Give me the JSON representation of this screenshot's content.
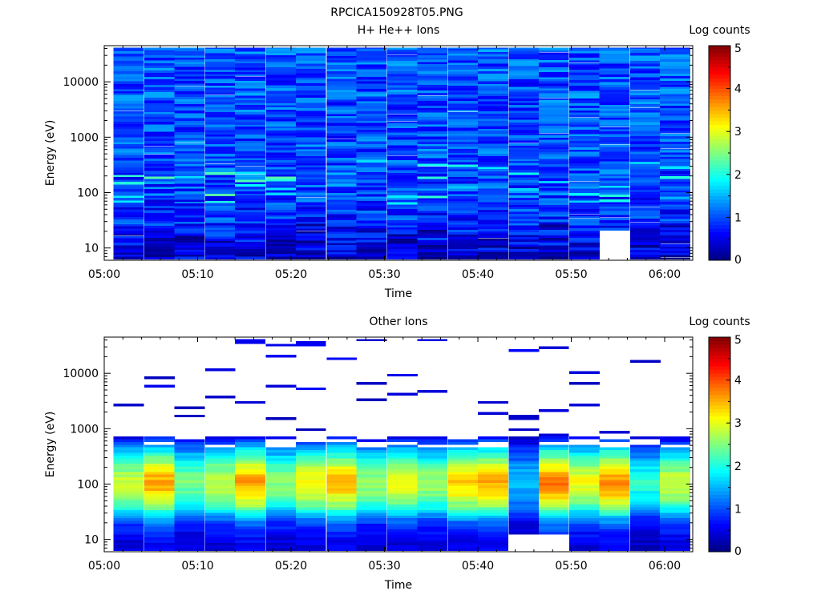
{
  "title": "RPCICA150928T05.PNG",
  "chart_data": [
    {
      "type": "heatmap",
      "title": "H+ He++ Ions",
      "xlabel": "Time",
      "ylabel": "Energy (eV)",
      "x_tick_labels": [
        "05:00",
        "05:10",
        "05:20",
        "05:30",
        "05:40",
        "05:50",
        "06:00"
      ],
      "y_tick_labels": [
        "10",
        "100",
        "1000",
        "10000"
      ],
      "y_scale": "log",
      "ylim": [
        6,
        45000
      ],
      "xlim": [
        "05:00",
        "06:03"
      ],
      "colorbar": {
        "label": "Log counts",
        "ticks": [
          "0",
          "1",
          "2",
          "3",
          "4",
          "5"
        ],
        "range": [
          0,
          5
        ],
        "colormap": "jet"
      },
      "time_bins_start_minutes": [
        1,
        4.3,
        7.5,
        10.8,
        14,
        17.3,
        20.5,
        23.8,
        27,
        30.3,
        33.5,
        36.8,
        40,
        43.3,
        46.5,
        49.8,
        53,
        56.3,
        59.5
      ],
      "coarse_profile_log_counts": {
        "energies_eV": [
          8,
          11,
          15,
          22,
          30,
          45,
          65,
          95,
          130,
          200,
          300,
          450,
          700,
          1000,
          1500,
          2200,
          3500,
          5000,
          8000,
          12000,
          20000,
          35000
        ],
        "values": [
          0.45,
          0.55,
          0.65,
          0.75,
          0.85,
          0.85,
          0.85,
          1.0,
          0.95,
          0.95,
          1.0,
          1.0,
          1.0,
          1.0,
          1.0,
          1.0,
          1.0,
          1.05,
          1.0,
          1.0,
          1.05,
          1.05
        ]
      },
      "missing_cells": [
        [
          "05:52-05:55",
          "6-20 eV"
        ]
      ]
    },
    {
      "type": "heatmap",
      "title": "Other Ions",
      "xlabel": "Time",
      "ylabel": "Energy (eV)",
      "x_tick_labels": [
        "05:00",
        "05:10",
        "05:20",
        "05:30",
        "05:40",
        "05:50",
        "06:00"
      ],
      "y_tick_labels": [
        "10",
        "100",
        "1000",
        "10000"
      ],
      "y_scale": "log",
      "ylim": [
        6,
        45000
      ],
      "xlim": [
        "05:00",
        "06:03"
      ],
      "colorbar": {
        "label": "Log counts",
        "ticks": [
          "0",
          "1",
          "2",
          "3",
          "4",
          "5"
        ],
        "range": [
          0,
          5
        ],
        "colormap": "jet"
      },
      "time_bins_start_minutes": [
        1,
        4.3,
        7.5,
        10.8,
        14,
        17.3,
        20.5,
        23.8,
        27,
        30.3,
        33.5,
        36.8,
        40,
        43.3,
        46.5,
        49.8,
        53,
        56.3,
        59.5
      ],
      "coarse_profile_log_counts": {
        "energies_eV": [
          8,
          12,
          18,
          25,
          35,
          50,
          70,
          100,
          140,
          200,
          300,
          450,
          650
        ],
        "values": [
          0.5,
          0.7,
          1.0,
          1.5,
          2.2,
          2.7,
          3.0,
          3.2,
          3.0,
          2.6,
          2.0,
          1.4,
          0.6
        ]
      },
      "peak_log_counts_by_bin": [
        2.9,
        3.6,
        2.5,
        2.9,
        3.6,
        2.6,
        3.2,
        3.5,
        2.7,
        3.1,
        2.7,
        3.4,
        3.6,
        1.6,
        3.8,
        3.1,
        3.7,
        2.1,
        2.9
      ],
      "sparse_high_energy_counts": "scattered single bins ~0.3-0.6 log counts above 1000 eV"
    }
  ]
}
